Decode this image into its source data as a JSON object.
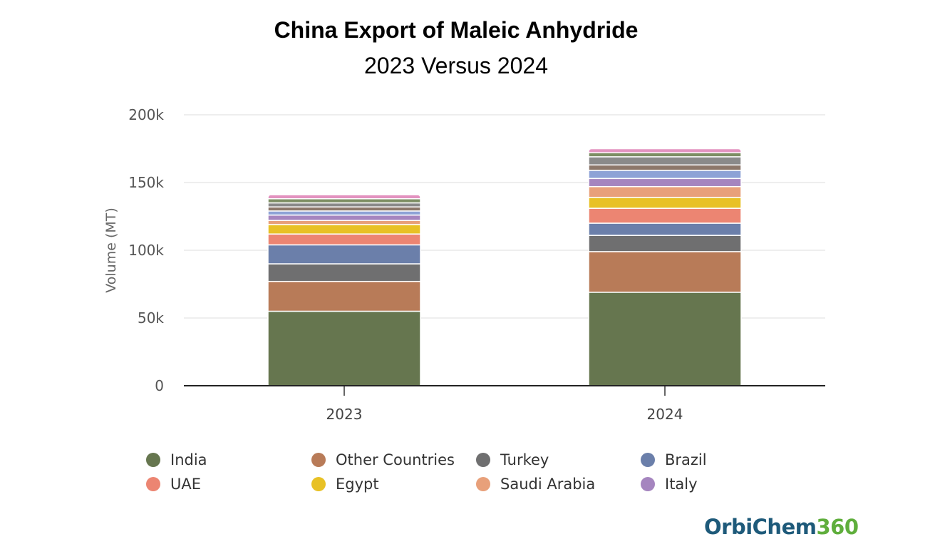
{
  "chart_data": {
    "type": "bar",
    "stacked": true,
    "title": "China Export of Maleic Anhydride",
    "subtitle": "2023 Versus 2024",
    "ylabel": "Volume (MT)",
    "xlabel": "",
    "ylim": [
      0,
      200000
    ],
    "yticks": [
      0,
      50000,
      100000,
      150000,
      200000
    ],
    "ytick_labels": [
      "0",
      "50k",
      "100k",
      "150k",
      "200k"
    ],
    "categories": [
      "2023",
      "2024"
    ],
    "grid": true,
    "legend_position": "bottom",
    "series": [
      {
        "name": "India",
        "color": "#66764f",
        "values": [
          55000,
          69000
        ]
      },
      {
        "name": "Other Countries",
        "color": "#b87b58",
        "values": [
          22000,
          30000
        ]
      },
      {
        "name": "Turkey",
        "color": "#6f6f70",
        "values": [
          13000,
          12000
        ]
      },
      {
        "name": "Brazil",
        "color": "#6b7faa",
        "values": [
          14000,
          9000
        ]
      },
      {
        "name": "UAE",
        "color": "#ec8572",
        "values": [
          8000,
          11000
        ]
      },
      {
        "name": "Egypt",
        "color": "#e8c125",
        "values": [
          7000,
          8000
        ]
      },
      {
        "name": "Saudi Arabia",
        "color": "#e8a07a",
        "values": [
          3000,
          8000
        ]
      },
      {
        "name": "Italy",
        "color": "#a585bf",
        "values": [
          4000,
          6000
        ]
      },
      {
        "name": "",
        "color": "#8da2d6",
        "values": [
          3000,
          6000
        ]
      },
      {
        "name": "",
        "color": "#8c776a",
        "values": [
          3000,
          4000
        ]
      },
      {
        "name": "",
        "color": "#8a8a8a",
        "values": [
          3000,
          6000
        ]
      },
      {
        "name": "",
        "color": "#7d8e64",
        "values": [
          3000,
          3000
        ]
      },
      {
        "name": "",
        "color": "#e393c0",
        "values": [
          3000,
          3000
        ]
      }
    ]
  },
  "logo": {
    "part1": "OrbiChem",
    "part2": "360"
  }
}
